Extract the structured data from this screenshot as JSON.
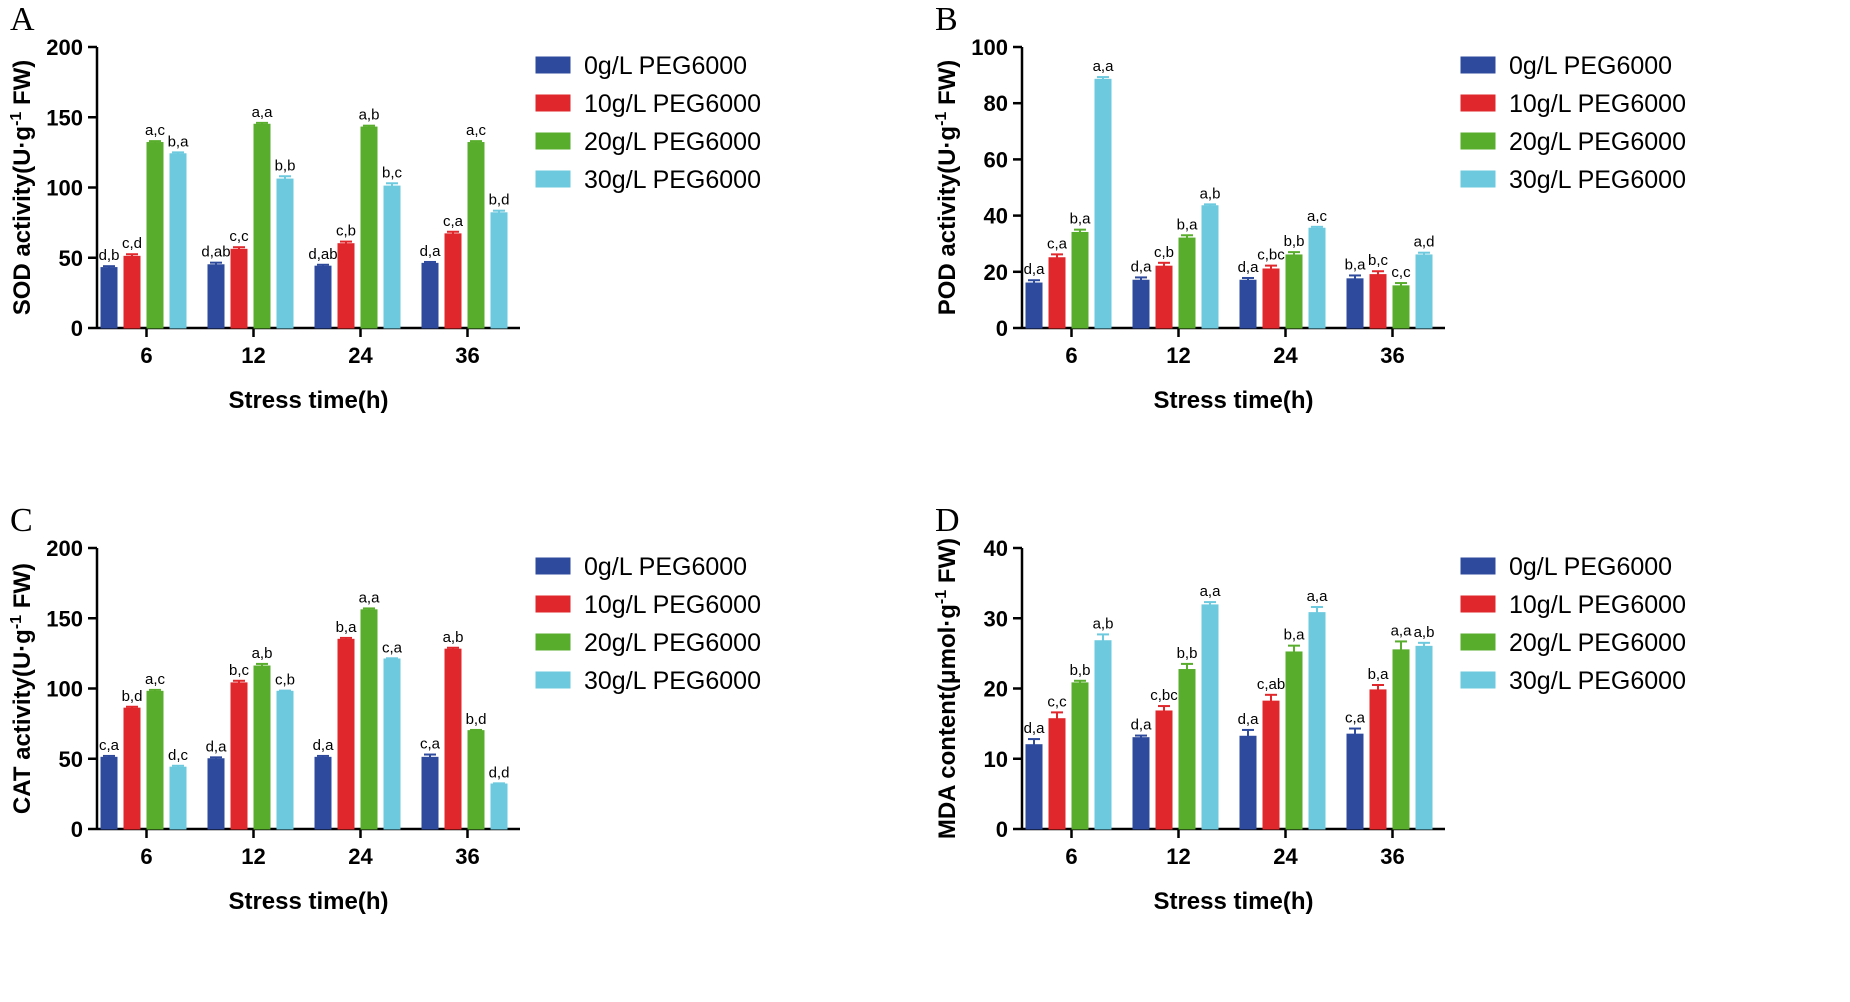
{
  "legend": [
    "0g/L PEG6000",
    "10g/L PEG6000",
    "20g/L PEG6000",
    "30g/L PEG6000"
  ],
  "colors": [
    "#2e4a9c",
    "#e0272b",
    "#58ad2c",
    "#6cc9de"
  ],
  "chart_data": [
    {
      "type": "bar",
      "panel": "A",
      "title": "",
      "xlabel": "Stress time(h)",
      "ylabel_main": "SOD activity(U·g",
      "ylabel_sup": "-1",
      "ylabel_tail": " FW)",
      "categories": [
        "6",
        "12",
        "24",
        "36"
      ],
      "ylim": [
        0,
        200
      ],
      "yticks": [
        0,
        50,
        100,
        150,
        200
      ],
      "series": [
        {
          "name": "0g/L PEG6000",
          "values": [
            43,
            45,
            44,
            46
          ],
          "errors": [
            1,
            1.5,
            1,
            1
          ],
          "labels": [
            "d,b",
            "d,ab",
            "d,ab",
            "d,a"
          ]
        },
        {
          "name": "10g/L PEG6000",
          "values": [
            51,
            56,
            60,
            67
          ],
          "errors": [
            1.5,
            1.5,
            1.5,
            1.5
          ],
          "labels": [
            "c,d",
            "c,c",
            "c,b",
            "c,a"
          ]
        },
        {
          "name": "20g/L PEG6000",
          "values": [
            132,
            145,
            143,
            132
          ],
          "errors": [
            1,
            1,
            1,
            1
          ],
          "labels": [
            "a,c",
            "a,a",
            "a,b",
            "a,c"
          ]
        },
        {
          "name": "30g/L PEG6000",
          "values": [
            124,
            106,
            101,
            82
          ],
          "errors": [
            1,
            2,
            2,
            1.5
          ],
          "labels": [
            "b,a",
            "b,b",
            "b,c",
            "b,d"
          ]
        }
      ]
    },
    {
      "type": "bar",
      "panel": "B",
      "title": "",
      "xlabel": "Stress time(h)",
      "ylabel_main": "POD activity(U·g",
      "ylabel_sup": "-1",
      "ylabel_tail": " FW)",
      "categories": [
        "6",
        "12",
        "24",
        "36"
      ],
      "ylim": [
        0,
        100
      ],
      "yticks": [
        0,
        20,
        40,
        60,
        80,
        100
      ],
      "series": [
        {
          "name": "0g/L PEG6000",
          "values": [
            16,
            17,
            17,
            17.5
          ],
          "errors": [
            1,
            1,
            0.8,
            1.2
          ],
          "labels": [
            "d,a",
            "d,a",
            "d,a",
            "b,a"
          ]
        },
        {
          "name": "10g/L PEG6000",
          "values": [
            25,
            22,
            21,
            19
          ],
          "errors": [
            1.2,
            1.2,
            1.2,
            1.2
          ],
          "labels": [
            "c,a",
            "c,b",
            "c,bc",
            "b,c"
          ]
        },
        {
          "name": "20g/L PEG6000",
          "values": [
            34,
            32,
            26,
            15
          ],
          "errors": [
            1,
            1,
            1,
            1
          ],
          "labels": [
            "b,a",
            "b,a",
            "b,b",
            "c,c"
          ]
        },
        {
          "name": "30g/L PEG6000",
          "values": [
            88.5,
            43.5,
            35.5,
            26
          ],
          "errors": [
            0.8,
            0.5,
            0.5,
            0.8
          ],
          "labels": [
            "a,a",
            "a,b",
            "a,c",
            "a,d"
          ]
        }
      ]
    },
    {
      "type": "bar",
      "panel": "C",
      "title": "",
      "xlabel": "Stress time(h)",
      "ylabel_main": "CAT activity(U·g",
      "ylabel_sup": "-1",
      "ylabel_tail": " FW)",
      "categories": [
        "6",
        "12",
        "24",
        "36"
      ],
      "ylim": [
        0,
        200
      ],
      "yticks": [
        0,
        50,
        100,
        150,
        200
      ],
      "series": [
        {
          "name": "0g/L PEG6000",
          "values": [
            51,
            50,
            51,
            51
          ],
          "errors": [
            1,
            1,
            1,
            2
          ],
          "labels": [
            "c,a",
            "d,a",
            "d,a",
            "c,a"
          ]
        },
        {
          "name": "10g/L PEG6000",
          "values": [
            86,
            104,
            135,
            128
          ],
          "errors": [
            1,
            1.5,
            1,
            1
          ],
          "labels": [
            "b,d",
            "b,c",
            "b,a",
            "a,b"
          ]
        },
        {
          "name": "20g/L PEG6000",
          "values": [
            98,
            116,
            156,
            70
          ],
          "errors": [
            1,
            1.5,
            1,
            0.5
          ],
          "labels": [
            "a,c",
            "a,b",
            "a,a",
            "b,d"
          ]
        },
        {
          "name": "30g/L PEG6000",
          "values": [
            44,
            98,
            121,
            32
          ],
          "errors": [
            1,
            0.5,
            0.5,
            0.5
          ],
          "labels": [
            "d,c",
            "c,b",
            "c,a",
            "d,d"
          ]
        }
      ]
    },
    {
      "type": "bar",
      "panel": "D",
      "title": "",
      "xlabel": "Stress time(h)",
      "ylabel_main": "MDA content(μmol·g",
      "ylabel_sup": "-1",
      "ylabel_tail": " FW)",
      "categories": [
        "6",
        "12",
        "24",
        "36"
      ],
      "ylim": [
        0,
        40
      ],
      "yticks": [
        0,
        10,
        20,
        30,
        40
      ],
      "series": [
        {
          "name": "0g/L PEG6000",
          "values": [
            12,
            13,
            13.2,
            13.5
          ],
          "errors": [
            0.8,
            0.3,
            0.9,
            0.8
          ],
          "labels": [
            "d,a",
            "d,a",
            "d,a",
            "c,a"
          ]
        },
        {
          "name": "10g/L PEG6000",
          "values": [
            15.7,
            16.8,
            18.2,
            19.8
          ],
          "errors": [
            0.9,
            0.7,
            0.9,
            0.7
          ],
          "labels": [
            "c,c",
            "c,bc",
            "c,ab",
            "b,a"
          ]
        },
        {
          "name": "20g/L PEG6000",
          "values": [
            20.8,
            22.7,
            25.2,
            25.5
          ],
          "errors": [
            0.3,
            0.8,
            0.9,
            1.2
          ],
          "labels": [
            "b,b",
            "b,b",
            "b,a",
            "a,a"
          ]
        },
        {
          "name": "30g/L PEG6000",
          "values": [
            26.8,
            31.9,
            30.8,
            26
          ],
          "errors": [
            0.9,
            0.4,
            0.8,
            0.5
          ],
          "labels": [
            "a,b",
            "a,a",
            "a,a",
            "a,b"
          ]
        }
      ]
    }
  ]
}
